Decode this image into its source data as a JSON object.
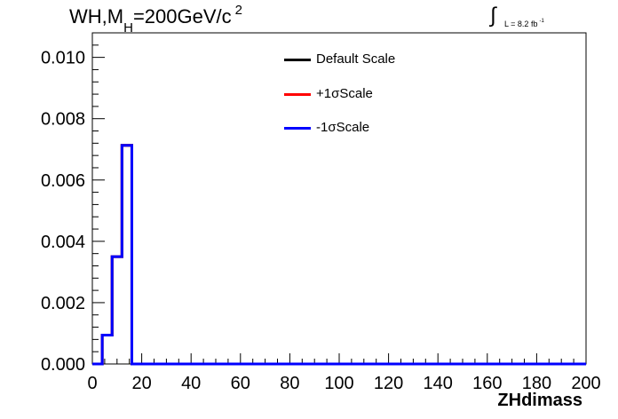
{
  "title": {
    "main": "WH,M",
    "sub": "H",
    "rest": "=200GeV/c",
    "sup": "2"
  },
  "lumi": {
    "text": "L = 8.2 fb",
    "sup": "-1"
  },
  "legend": {
    "items": [
      {
        "label": "Default Scale",
        "color": "#000000"
      },
      {
        "label": "+1σScale",
        "color": "#ff0000"
      },
      {
        "label": "-1σScale",
        "color": "#0000ff"
      }
    ]
  },
  "chart_data": {
    "type": "line",
    "style": "step-histogram",
    "xlabel": "ZHdimass",
    "ylabel": "",
    "xlim": [
      0,
      200
    ],
    "ylim": [
      0,
      0.0108
    ],
    "xticks": [
      0,
      20,
      40,
      60,
      80,
      100,
      120,
      140,
      160,
      180,
      200
    ],
    "xtick_labels": [
      "0",
      "20",
      "40",
      "60",
      "80",
      "100",
      "120",
      "140",
      "160",
      "180",
      "200"
    ],
    "yticks": [
      0.0,
      0.002,
      0.004,
      0.006,
      0.008,
      0.01
    ],
    "ytick_labels": [
      "0.000",
      "0.002",
      "0.004",
      "0.006",
      "0.008",
      "0.010"
    ],
    "bin_edges": [
      0,
      4,
      8,
      12,
      16,
      200
    ],
    "series": [
      {
        "name": "Default Scale",
        "color": "#000000",
        "values": [
          0,
          0.00094,
          0.0035,
          0.00713,
          0
        ]
      },
      {
        "name": "+1σScale",
        "color": "#ff0000",
        "values": [
          0,
          0.00094,
          0.0035,
          0.00713,
          0
        ]
      },
      {
        "name": "-1σScale",
        "color": "#0000ff",
        "values": [
          0,
          0.00094,
          0.0035,
          0.00713,
          0
        ]
      }
    ]
  }
}
